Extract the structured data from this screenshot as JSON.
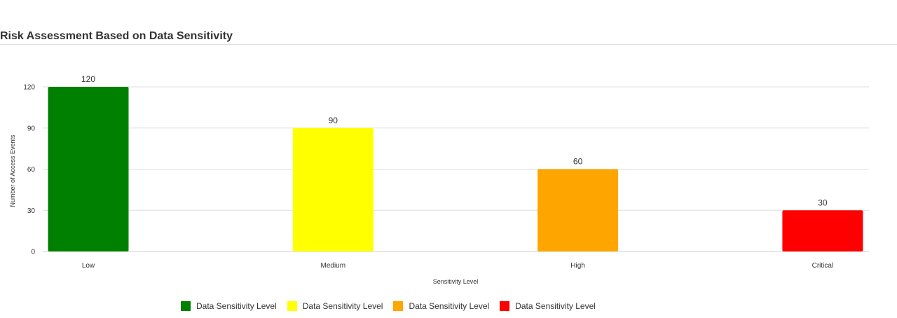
{
  "header": {
    "title": "Risk Assessment Based on Data Sensitivity"
  },
  "chart_data": {
    "type": "bar",
    "categories": [
      "Low",
      "Medium",
      "High",
      "Critical"
    ],
    "values": [
      120,
      90,
      60,
      30
    ],
    "colors": [
      "#008000",
      "#ffff00",
      "#ffa500",
      "#ff0000"
    ],
    "xlabel": "Sensitivity Level",
    "ylabel": "Number of Access Events",
    "ylim": [
      0,
      120
    ],
    "yticks": [
      0,
      30,
      60,
      90,
      120
    ],
    "grid": true,
    "data_labels": true,
    "legend_placement": "bottom",
    "legend": [
      {
        "label": "Data Sensitivity Level",
        "color": "#008000"
      },
      {
        "label": "Data Sensitivity Level",
        "color": "#ffff00"
      },
      {
        "label": "Data Sensitivity Level",
        "color": "#ffa500"
      },
      {
        "label": "Data Sensitivity Level",
        "color": "#ff0000"
      }
    ]
  }
}
